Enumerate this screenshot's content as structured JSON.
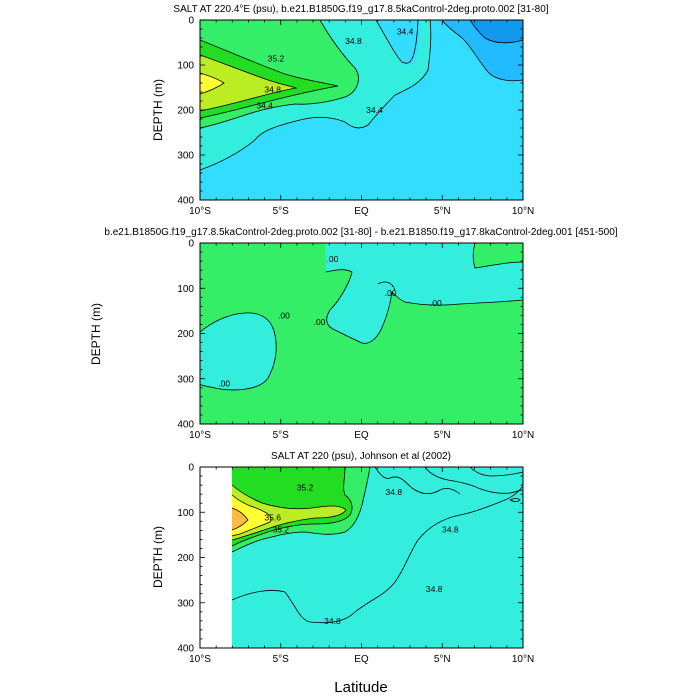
{
  "colors": {
    "yellow": "#ffff33",
    "orange": "#ffbb44",
    "lime": "#bbee22",
    "green": "#33ee66",
    "bright_green": "#22dd22",
    "aqua": "#33eedd",
    "cyan": "#33ddff",
    "sky": "#22bbff",
    "blue": "#1199ee",
    "missing": "#ffffff"
  },
  "x_tick_labels": [
    "10°S",
    "5°S",
    "EQ",
    "5°N",
    "10°N"
  ],
  "y_tick_labels": [
    "0",
    "100",
    "200",
    "300",
    "400"
  ],
  "shared_ylabel": "DEPTH (m)",
  "xlabel": "Latitude",
  "chart_data": [
    {
      "type": "contour",
      "title": "SALT AT 220.4°E (psu), b.e21.B1850G.f19_g17.8.5kaControl-2deg.proto.002 [31-80]",
      "xlabel": "",
      "ylabel": "DEPTH (m)",
      "xlim": [
        -10,
        10
      ],
      "ylim": [
        400,
        0
      ],
      "contour_labels": [
        {
          "text": "35.2",
          "x": -5.3,
          "y": 86
        },
        {
          "text": "34.8",
          "x": -5.5,
          "y": 154
        },
        {
          "text": "34.4",
          "x": -6.0,
          "y": 190
        },
        {
          "text": "34.8",
          "x": -0.5,
          "y": 47
        },
        {
          "text": "34.4",
          "x": 2.7,
          "y": 25
        },
        {
          "text": "34.4",
          "x": 0.8,
          "y": 200
        }
      ]
    },
    {
      "type": "contour",
      "title": "b.e21.B1850G.f19_g17.8.5kaControl-2deg.proto.002 [31-80] - b.e21.B1850.f19_g17.8kaControl-2deg.001 [451-500]",
      "xlabel": "",
      "ylabel": "",
      "xlim": [
        -10,
        10
      ],
      "ylim": [
        400,
        0
      ],
      "contour_labels": [
        {
          "text": ".00",
          "x": -1.8,
          "y": 35
        },
        {
          "text": ".00",
          "x": -4.8,
          "y": 160
        },
        {
          "text": ".00",
          "x": -2.6,
          "y": 175
        },
        {
          "text": ".00",
          "x": 1.8,
          "y": 110
        },
        {
          "text": ".00",
          "x": 4.6,
          "y": 133
        },
        {
          "text": ".00",
          "x": -8.5,
          "y": 310
        }
      ]
    },
    {
      "type": "contour",
      "title": "SALT AT 220 (psu), Johnson et al (2002)",
      "xlabel": "Latitude",
      "ylabel": "DEPTH (m)",
      "xlim": [
        -10,
        10
      ],
      "ylim": [
        400,
        0
      ],
      "missing_region": {
        "x": [
          -10,
          -8
        ],
        "y": [
          0,
          400
        ]
      },
      "contour_labels": [
        {
          "text": "35.2",
          "x": -3.5,
          "y": 45
        },
        {
          "text": "35.6",
          "x": -5.5,
          "y": 112
        },
        {
          "text": "35.2",
          "x": -5.0,
          "y": 138
        },
        {
          "text": "34.8",
          "x": 2.0,
          "y": 55
        },
        {
          "text": "34.8",
          "x": 5.5,
          "y": 138
        },
        {
          "text": "34.8",
          "x": 4.5,
          "y": 270
        },
        {
          "text": "34.8",
          "x": -1.8,
          "y": 340
        }
      ]
    }
  ]
}
